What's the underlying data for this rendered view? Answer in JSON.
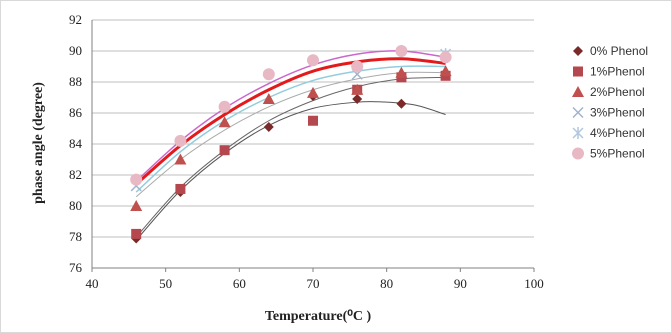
{
  "chart_data": {
    "type": "scatter",
    "xlabel": "Temperature(⁰C )",
    "ylabel": "phase angle (degree)",
    "xlim": [
      40,
      100
    ],
    "ylim": [
      76,
      92
    ],
    "xticks": [
      "40",
      "50",
      "60",
      "70",
      "80",
      "90",
      "100"
    ],
    "yticks": [
      "76",
      "78",
      "80",
      "82",
      "84",
      "86",
      "88",
      "90",
      "92"
    ],
    "grid": "horizontal",
    "legend_position": "right",
    "x": [
      46,
      52,
      58,
      64,
      70,
      76,
      82,
      88
    ],
    "series": [
      {
        "name": "0% Phenol",
        "marker": "diamond",
        "color": "#7b2a2a",
        "values": [
          77.9,
          80.9,
          83.6,
          85.1,
          87.1,
          86.9,
          86.6,
          null
        ],
        "trend_color": "#555555",
        "trend_width": 1,
        "trend": [
          [
            46,
            77.8
          ],
          [
            52,
            81.0
          ],
          [
            58,
            83.4
          ],
          [
            64,
            85.2
          ],
          [
            70,
            86.3
          ],
          [
            76,
            86.7
          ],
          [
            80,
            86.7
          ],
          [
            84,
            86.5
          ],
          [
            88,
            85.9
          ]
        ]
      },
      {
        "name": "1%Phenol",
        "marker": "square",
        "color": "#b5484f",
        "values": [
          78.2,
          81.1,
          83.6,
          null,
          85.5,
          87.5,
          88.3,
          88.4
        ],
        "trend_color": "#666666",
        "trend_width": 1,
        "trend": [
          [
            46,
            78.0
          ],
          [
            52,
            81.2
          ],
          [
            58,
            83.6
          ],
          [
            64,
            85.5
          ],
          [
            70,
            86.8
          ],
          [
            76,
            87.7
          ],
          [
            82,
            88.2
          ],
          [
            88,
            88.3
          ]
        ]
      },
      {
        "name": "2%Phenol",
        "marker": "triangle",
        "color": "#c0504d",
        "values": [
          80.0,
          83.0,
          85.4,
          86.9,
          87.3,
          87.5,
          88.6,
          88.7
        ],
        "trend_color": "#aaaaaa",
        "trend_width": 1,
        "trend": [
          [
            46,
            80.6
          ],
          [
            52,
            83.0
          ],
          [
            58,
            84.9
          ],
          [
            64,
            86.4
          ],
          [
            70,
            87.5
          ],
          [
            76,
            88.2
          ],
          [
            82,
            88.6
          ],
          [
            88,
            88.6
          ]
        ]
      },
      {
        "name": "3%Phenol",
        "marker": "x",
        "color": "#9fb4cc",
        "values": [
          81.3,
          null,
          null,
          null,
          null,
          88.5,
          null,
          null
        ],
        "trend_color": "#93cddd",
        "trend_width": 1.5,
        "trend": [
          [
            46,
            80.9
          ],
          [
            52,
            83.5
          ],
          [
            58,
            85.5
          ],
          [
            64,
            87.0
          ],
          [
            70,
            88.1
          ],
          [
            76,
            88.7
          ],
          [
            82,
            89.0
          ],
          [
            88,
            89.0
          ]
        ]
      },
      {
        "name": "4%Phenol",
        "marker": "star",
        "color": "#b3c6e0",
        "values": [
          null,
          null,
          null,
          null,
          null,
          null,
          null,
          89.8
        ],
        "trend_color": "#cc66cc",
        "trend_width": 1.5,
        "trend": [
          [
            46,
            81.6
          ],
          [
            52,
            84.2
          ],
          [
            58,
            86.3
          ],
          [
            64,
            87.9
          ],
          [
            70,
            89.1
          ],
          [
            76,
            89.8
          ],
          [
            82,
            90.0
          ],
          [
            88,
            89.6
          ]
        ]
      },
      {
        "name": "5%Phenol",
        "marker": "circle",
        "color": "#e8b8c4",
        "values": [
          81.7,
          84.2,
          86.4,
          88.5,
          89.4,
          89.0,
          90.0,
          89.6
        ],
        "trend_color": "#e31a1c",
        "trend_width": 3,
        "trend": [
          [
            46,
            81.4
          ],
          [
            52,
            83.9
          ],
          [
            58,
            85.9
          ],
          [
            64,
            87.5
          ],
          [
            70,
            88.7
          ],
          [
            76,
            89.3
          ],
          [
            82,
            89.5
          ],
          [
            88,
            89.2
          ]
        ]
      }
    ]
  }
}
